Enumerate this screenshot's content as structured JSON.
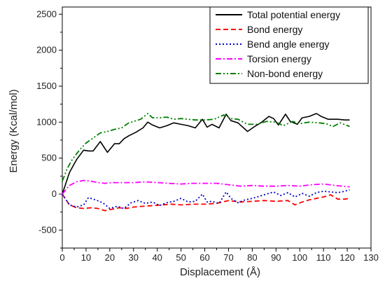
{
  "chart_data": {
    "type": "line",
    "title": "",
    "xlabel": "Displacement (Å)",
    "ylabel": "Energy (Kcal/mol)",
    "xlim": [
      0,
      130
    ],
    "ylim": [
      -750,
      2600
    ],
    "x_ticks": [
      0,
      10,
      20,
      30,
      40,
      50,
      60,
      70,
      80,
      90,
      100,
      110,
      120,
      130
    ],
    "y_ticks": [
      -500,
      0,
      500,
      1000,
      1500,
      2000,
      2500
    ],
    "x_tick_labels": [
      "0",
      "10",
      "20",
      "30",
      "40",
      "50",
      "60",
      "70",
      "80",
      "90",
      "100",
      "110",
      "120",
      "130"
    ],
    "y_tick_labels": [
      "-500",
      "0",
      "500",
      "1000",
      "1500",
      "2000",
      "2500"
    ],
    "grid": false,
    "legend_position": "top-right",
    "series": [
      {
        "name": "Total potential energy",
        "color": "#000000",
        "style": "solid",
        "x": [
          0,
          3,
          6,
          9,
          11,
          13,
          16,
          19,
          22,
          24,
          26,
          28,
          31,
          34,
          36,
          38,
          41,
          44,
          47,
          50,
          53,
          56,
          59,
          61,
          63,
          66,
          69,
          71,
          74,
          78,
          81,
          84,
          87,
          89,
          91,
          94,
          96,
          99,
          101,
          104,
          107,
          109,
          112,
          116,
          119,
          121
        ],
        "y": [
          0,
          300,
          480,
          610,
          600,
          600,
          730,
          580,
          700,
          700,
          770,
          810,
          860,
          920,
          1000,
          960,
          920,
          950,
          990,
          970,
          950,
          920,
          1040,
          930,
          970,
          920,
          1110,
          1020,
          990,
          870,
          940,
          1000,
          1080,
          1050,
          960,
          1110,
          1010,
          970,
          1060,
          1080,
          1120,
          1080,
          1040,
          1040,
          1030,
          1030
        ]
      },
      {
        "name": "Bond energy",
        "color": "#ff0000",
        "style": "dash",
        "x": [
          0,
          3,
          6,
          9,
          12,
          15,
          18,
          21,
          24,
          27,
          30,
          34,
          38,
          42,
          46,
          50,
          55,
          60,
          65,
          70,
          75,
          80,
          85,
          90,
          95,
          98,
          101,
          104,
          107,
          110,
          113,
          116,
          119,
          121
        ],
        "y": [
          0,
          -150,
          -190,
          -200,
          -190,
          -200,
          -230,
          -210,
          -190,
          -200,
          -180,
          -170,
          -160,
          -150,
          -140,
          -150,
          -140,
          -140,
          -130,
          -90,
          -110,
          -100,
          -90,
          -100,
          -90,
          -150,
          -110,
          -80,
          -60,
          -40,
          -10,
          -70,
          -70,
          -60
        ]
      },
      {
        "name": "Bend angle energy",
        "color": "#0000cc",
        "style": "dot",
        "x": [
          0,
          3,
          6,
          9,
          11,
          14,
          17,
          20,
          23,
          26,
          29,
          32,
          35,
          38,
          41,
          44,
          47,
          50,
          53,
          56,
          59,
          61,
          63,
          66,
          69,
          71,
          74,
          77,
          80,
          83,
          86,
          89,
          92,
          95,
          98,
          101,
          104,
          107,
          110,
          113,
          116,
          119,
          121
        ],
        "y": [
          0,
          -150,
          -180,
          -150,
          -50,
          -80,
          -120,
          -200,
          -170,
          -200,
          -120,
          -90,
          -130,
          -110,
          -160,
          -120,
          -100,
          -60,
          -110,
          -100,
          0,
          -110,
          -100,
          -130,
          30,
          -60,
          -120,
          -80,
          -60,
          -30,
          0,
          30,
          -20,
          20,
          -40,
          10,
          -30,
          20,
          40,
          30,
          20,
          40,
          60
        ]
      },
      {
        "name": "Torsion energy",
        "color": "#ff00ff",
        "style": "dashdot",
        "x": [
          0,
          3,
          6,
          9,
          12,
          15,
          18,
          21,
          25,
          30,
          35,
          40,
          45,
          50,
          55,
          60,
          65,
          70,
          75,
          80,
          85,
          90,
          95,
          100,
          105,
          110,
          115,
          121
        ],
        "y": [
          0,
          120,
          170,
          190,
          180,
          160,
          150,
          160,
          160,
          160,
          170,
          160,
          150,
          140,
          150,
          150,
          150,
          130,
          110,
          120,
          110,
          110,
          120,
          110,
          130,
          140,
          120,
          100
        ]
      },
      {
        "name": "Non-bond energy",
        "color": "#008000",
        "style": "dashdotdot",
        "x": [
          0,
          2,
          4,
          6,
          8,
          10,
          13,
          16,
          19,
          22,
          25,
          28,
          30,
          33,
          36,
          38,
          41,
          44,
          47,
          50,
          53,
          56,
          60,
          64,
          68,
          71,
          74,
          78,
          82,
          86,
          90,
          93,
          97,
          100,
          104,
          108,
          111,
          114,
          117,
          121
        ],
        "y": [
          180,
          350,
          470,
          560,
          640,
          710,
          780,
          850,
          870,
          900,
          920,
          990,
          1010,
          1040,
          1120,
          1060,
          1060,
          1070,
          1040,
          1050,
          1040,
          1030,
          1030,
          1040,
          1100,
          1050,
          1040,
          970,
          970,
          1010,
          1000,
          950,
          1010,
          980,
          1000,
          990,
          980,
          940,
          990,
          940
        ]
      }
    ]
  }
}
